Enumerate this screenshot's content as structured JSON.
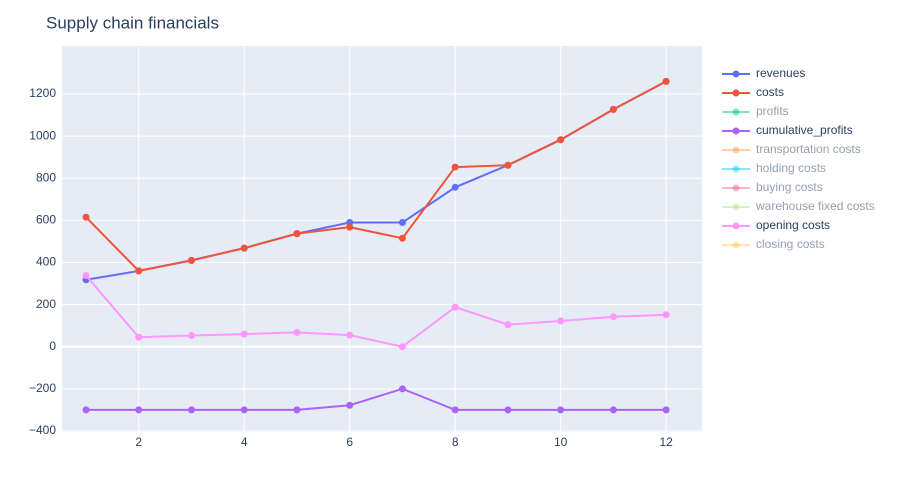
{
  "chart_data": {
    "type": "line",
    "title": "Supply chain financials",
    "x": [
      1,
      2,
      3,
      4,
      5,
      6,
      7,
      8,
      9,
      10,
      11,
      12
    ],
    "xlim": [
      0.545,
      12.68
    ],
    "xticks": [
      2,
      4,
      6,
      8,
      10,
      12
    ],
    "ylim": [
      -405,
      1428
    ],
    "yticks": [
      {
        "value": -400,
        "label": "−400"
      },
      {
        "value": -200,
        "label": "−200"
      },
      0,
      200,
      400,
      600,
      800,
      1000,
      1200
    ],
    "grid": true,
    "legend": "right",
    "series": [
      {
        "name": "revenues",
        "color": "#636efa",
        "values": [
          318,
          360,
          410,
          468,
          537,
          590,
          590,
          757,
          862,
          983,
          1127,
          1260
        ]
      },
      {
        "name": "costs",
        "color": "#EF553B",
        "values": [
          615,
          360,
          410,
          468,
          537,
          568,
          515,
          853,
          862,
          983,
          1127,
          1260
        ]
      },
      {
        "name": "profits",
        "color": "#00cc96",
        "visible": "legendonly"
      },
      {
        "name": "cumulative_profits",
        "color": "#ab63fa",
        "values": [
          -300,
          -300,
          -300,
          -300,
          -300,
          -278,
          -200,
          -300,
          -300,
          -300,
          -300,
          -300
        ]
      },
      {
        "name": "transportation costs",
        "color": "#FFA15A",
        "visible": "legendonly"
      },
      {
        "name": "holding costs",
        "color": "#19d3f3",
        "visible": "legendonly"
      },
      {
        "name": "buying costs",
        "color": "#FF6692",
        "visible": "legendonly"
      },
      {
        "name": "warehouse fixed costs",
        "color": "#B6E880",
        "visible": "legendonly"
      },
      {
        "name": "opening costs",
        "color": "#FF97FF",
        "values": [
          338,
          45,
          53,
          60,
          68,
          55,
          0,
          188,
          105,
          122,
          142,
          152
        ]
      },
      {
        "name": "closing costs",
        "color": "#FECB52",
        "visible": "legendonly"
      }
    ]
  }
}
